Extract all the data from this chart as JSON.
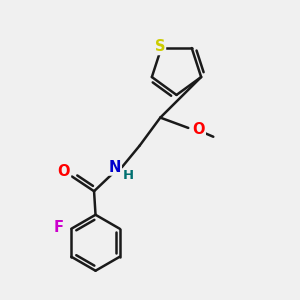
{
  "background_color": "#f0f0f0",
  "bond_color": "#1a1a1a",
  "bond_width": 1.8,
  "atom_labels": {
    "S": {
      "color": "#cccc00",
      "fontsize": 10.5
    },
    "O": {
      "color": "#ff0000",
      "fontsize": 10.5
    },
    "N": {
      "color": "#0000cc",
      "fontsize": 10.5
    },
    "H": {
      "color": "#007070",
      "fontsize": 9.5
    },
    "F": {
      "color": "#cc00cc",
      "fontsize": 10.5
    }
  },
  "figsize": [
    3.0,
    3.0
  ],
  "dpi": 100
}
